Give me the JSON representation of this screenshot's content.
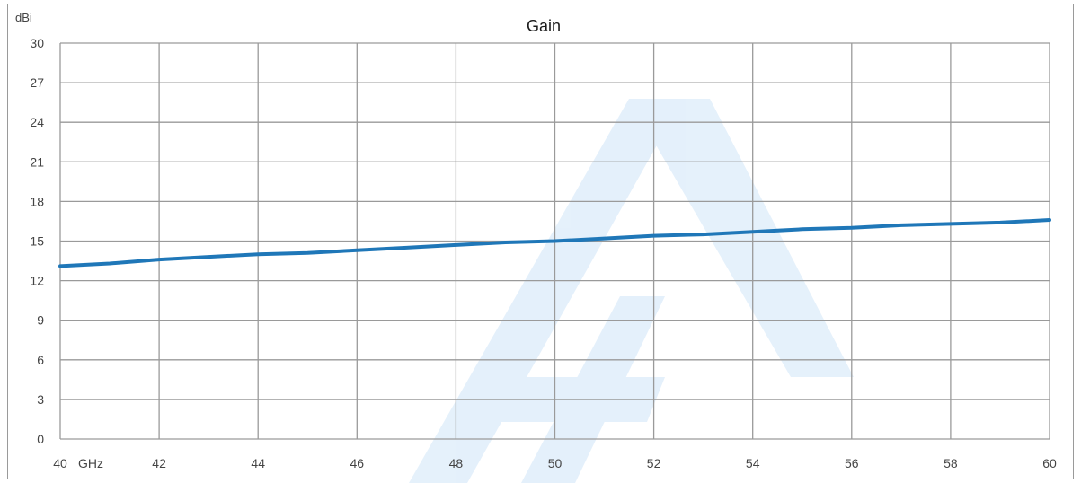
{
  "chart_data": {
    "type": "line",
    "title": "Gain",
    "ylabel": "dBi",
    "xlabel": "GHz",
    "xlim": [
      40,
      60
    ],
    "ylim": [
      0,
      30
    ],
    "x_ticks": [
      40,
      42,
      44,
      46,
      48,
      50,
      52,
      54,
      56,
      58,
      60
    ],
    "y_ticks": [
      0,
      3,
      6,
      9,
      12,
      15,
      18,
      21,
      24,
      27,
      30
    ],
    "grid": true,
    "series": [
      {
        "color": "#1f77b8",
        "x": [
          40,
          41,
          42,
          43,
          44,
          45,
          46,
          47,
          48,
          49,
          50,
          51,
          52,
          53,
          54,
          55,
          56,
          57,
          58,
          59,
          60
        ],
        "y": [
          13.1,
          13.3,
          13.6,
          13.8,
          14.0,
          14.1,
          14.3,
          14.5,
          14.7,
          14.9,
          15.0,
          15.2,
          15.4,
          15.5,
          15.7,
          15.9,
          16.0,
          16.2,
          16.3,
          16.4,
          16.6
        ]
      }
    ]
  }
}
